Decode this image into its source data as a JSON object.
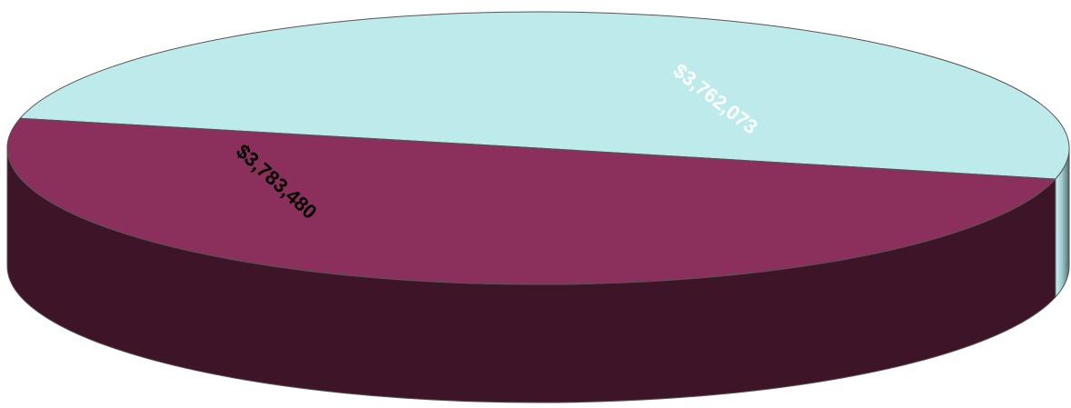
{
  "chart_data": {
    "type": "pie",
    "style": "3d",
    "title": "",
    "categories": [
      "",
      ""
    ],
    "values": [
      3783480,
      3762073
    ],
    "data_labels": [
      "$3,783,480",
      "$3,762,073"
    ],
    "colors": [
      "#bdebeb",
      "#8b2f5c"
    ],
    "side_colors": [
      "#a8d4d6",
      "#3d1428"
    ],
    "label_colors": [
      "#000000",
      "#ffffff"
    ],
    "legend": "none"
  }
}
